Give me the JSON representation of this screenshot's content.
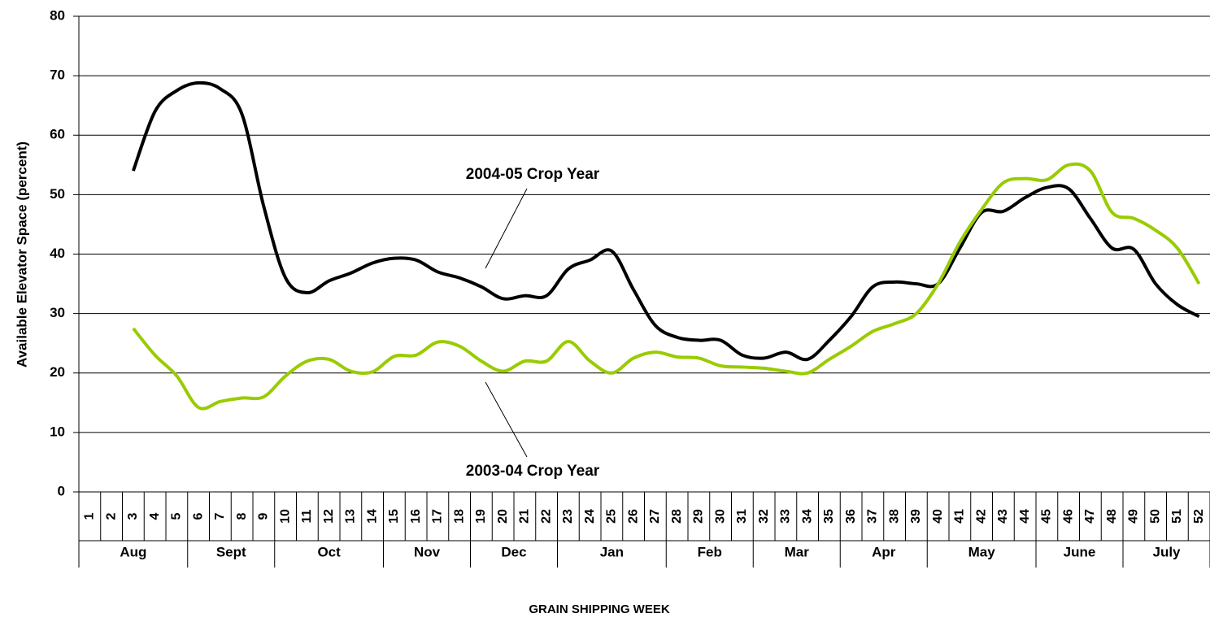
{
  "chart_data": {
    "type": "line",
    "y_label": "Available Elevator Space (percent)",
    "x_label": "GRAIN SHIPPING WEEK",
    "categories": [
      "1",
      "2",
      "3",
      "4",
      "5",
      "6",
      "7",
      "8",
      "9",
      "10",
      "11",
      "12",
      "13",
      "14",
      "15",
      "16",
      "17",
      "18",
      "19",
      "20",
      "21",
      "22",
      "23",
      "24",
      "25",
      "26",
      "27",
      "28",
      "29",
      "30",
      "31",
      "32",
      "33",
      "34",
      "35",
      "36",
      "37",
      "38",
      "39",
      "40",
      "41",
      "42",
      "43",
      "44",
      "45",
      "46",
      "47",
      "48",
      "49",
      "50",
      "51",
      "52"
    ],
    "month_groups": [
      {
        "label": "Aug",
        "span": 5
      },
      {
        "label": "Sept",
        "span": 4
      },
      {
        "label": "Oct",
        "span": 5
      },
      {
        "label": "Nov",
        "span": 4
      },
      {
        "label": "Dec",
        "span": 4
      },
      {
        "label": "Jan",
        "span": 5
      },
      {
        "label": "Feb",
        "span": 4
      },
      {
        "label": "Mar",
        "span": 4
      },
      {
        "label": "Apr",
        "span": 4
      },
      {
        "label": "May",
        "span": 5
      },
      {
        "label": "June",
        "span": 4
      },
      {
        "label": "July",
        "span": 4
      }
    ],
    "series": [
      {
        "name": "2004-05 Crop Year",
        "color": "#000000",
        "values": [
          null,
          null,
          54,
          64,
          67.5,
          68.8,
          67.8,
          63.5,
          48,
          36,
          33.5,
          35.5,
          36.8,
          38.5,
          39.3,
          39,
          37,
          36,
          34.5,
          32.5,
          33,
          33,
          37.5,
          39,
          40.5,
          34,
          28,
          26,
          25.5,
          25.5,
          23,
          22.5,
          23.5,
          22.3,
          25.5,
          29.5,
          34.5,
          35.3,
          35,
          35,
          41,
          47,
          47.2,
          49.5,
          51.2,
          51,
          46,
          41,
          40.8,
          35,
          31.5,
          29.5
        ]
      },
      {
        "name": "2003-04 Crop Year",
        "color": "#99cc00",
        "values": [
          null,
          null,
          27.5,
          23,
          19.5,
          14.2,
          15.2,
          15.8,
          16,
          19.5,
          22,
          22.3,
          20.3,
          20.2,
          22.8,
          23,
          25.2,
          24.5,
          22,
          20.3,
          22,
          22,
          25.3,
          22,
          20,
          22.5,
          23.5,
          22.7,
          22.5,
          21.2,
          21,
          20.8,
          20.3,
          20,
          22.3,
          24.5,
          27,
          28.3,
          30,
          35,
          42,
          47.5,
          52,
          52.7,
          52.5,
          55,
          54,
          47,
          46,
          44,
          41,
          35
        ]
      }
    ],
    "ylim": [
      0,
      80
    ],
    "yticks": [
      0,
      10,
      20,
      30,
      40,
      50,
      60,
      70,
      80
    ],
    "grid": true
  }
}
